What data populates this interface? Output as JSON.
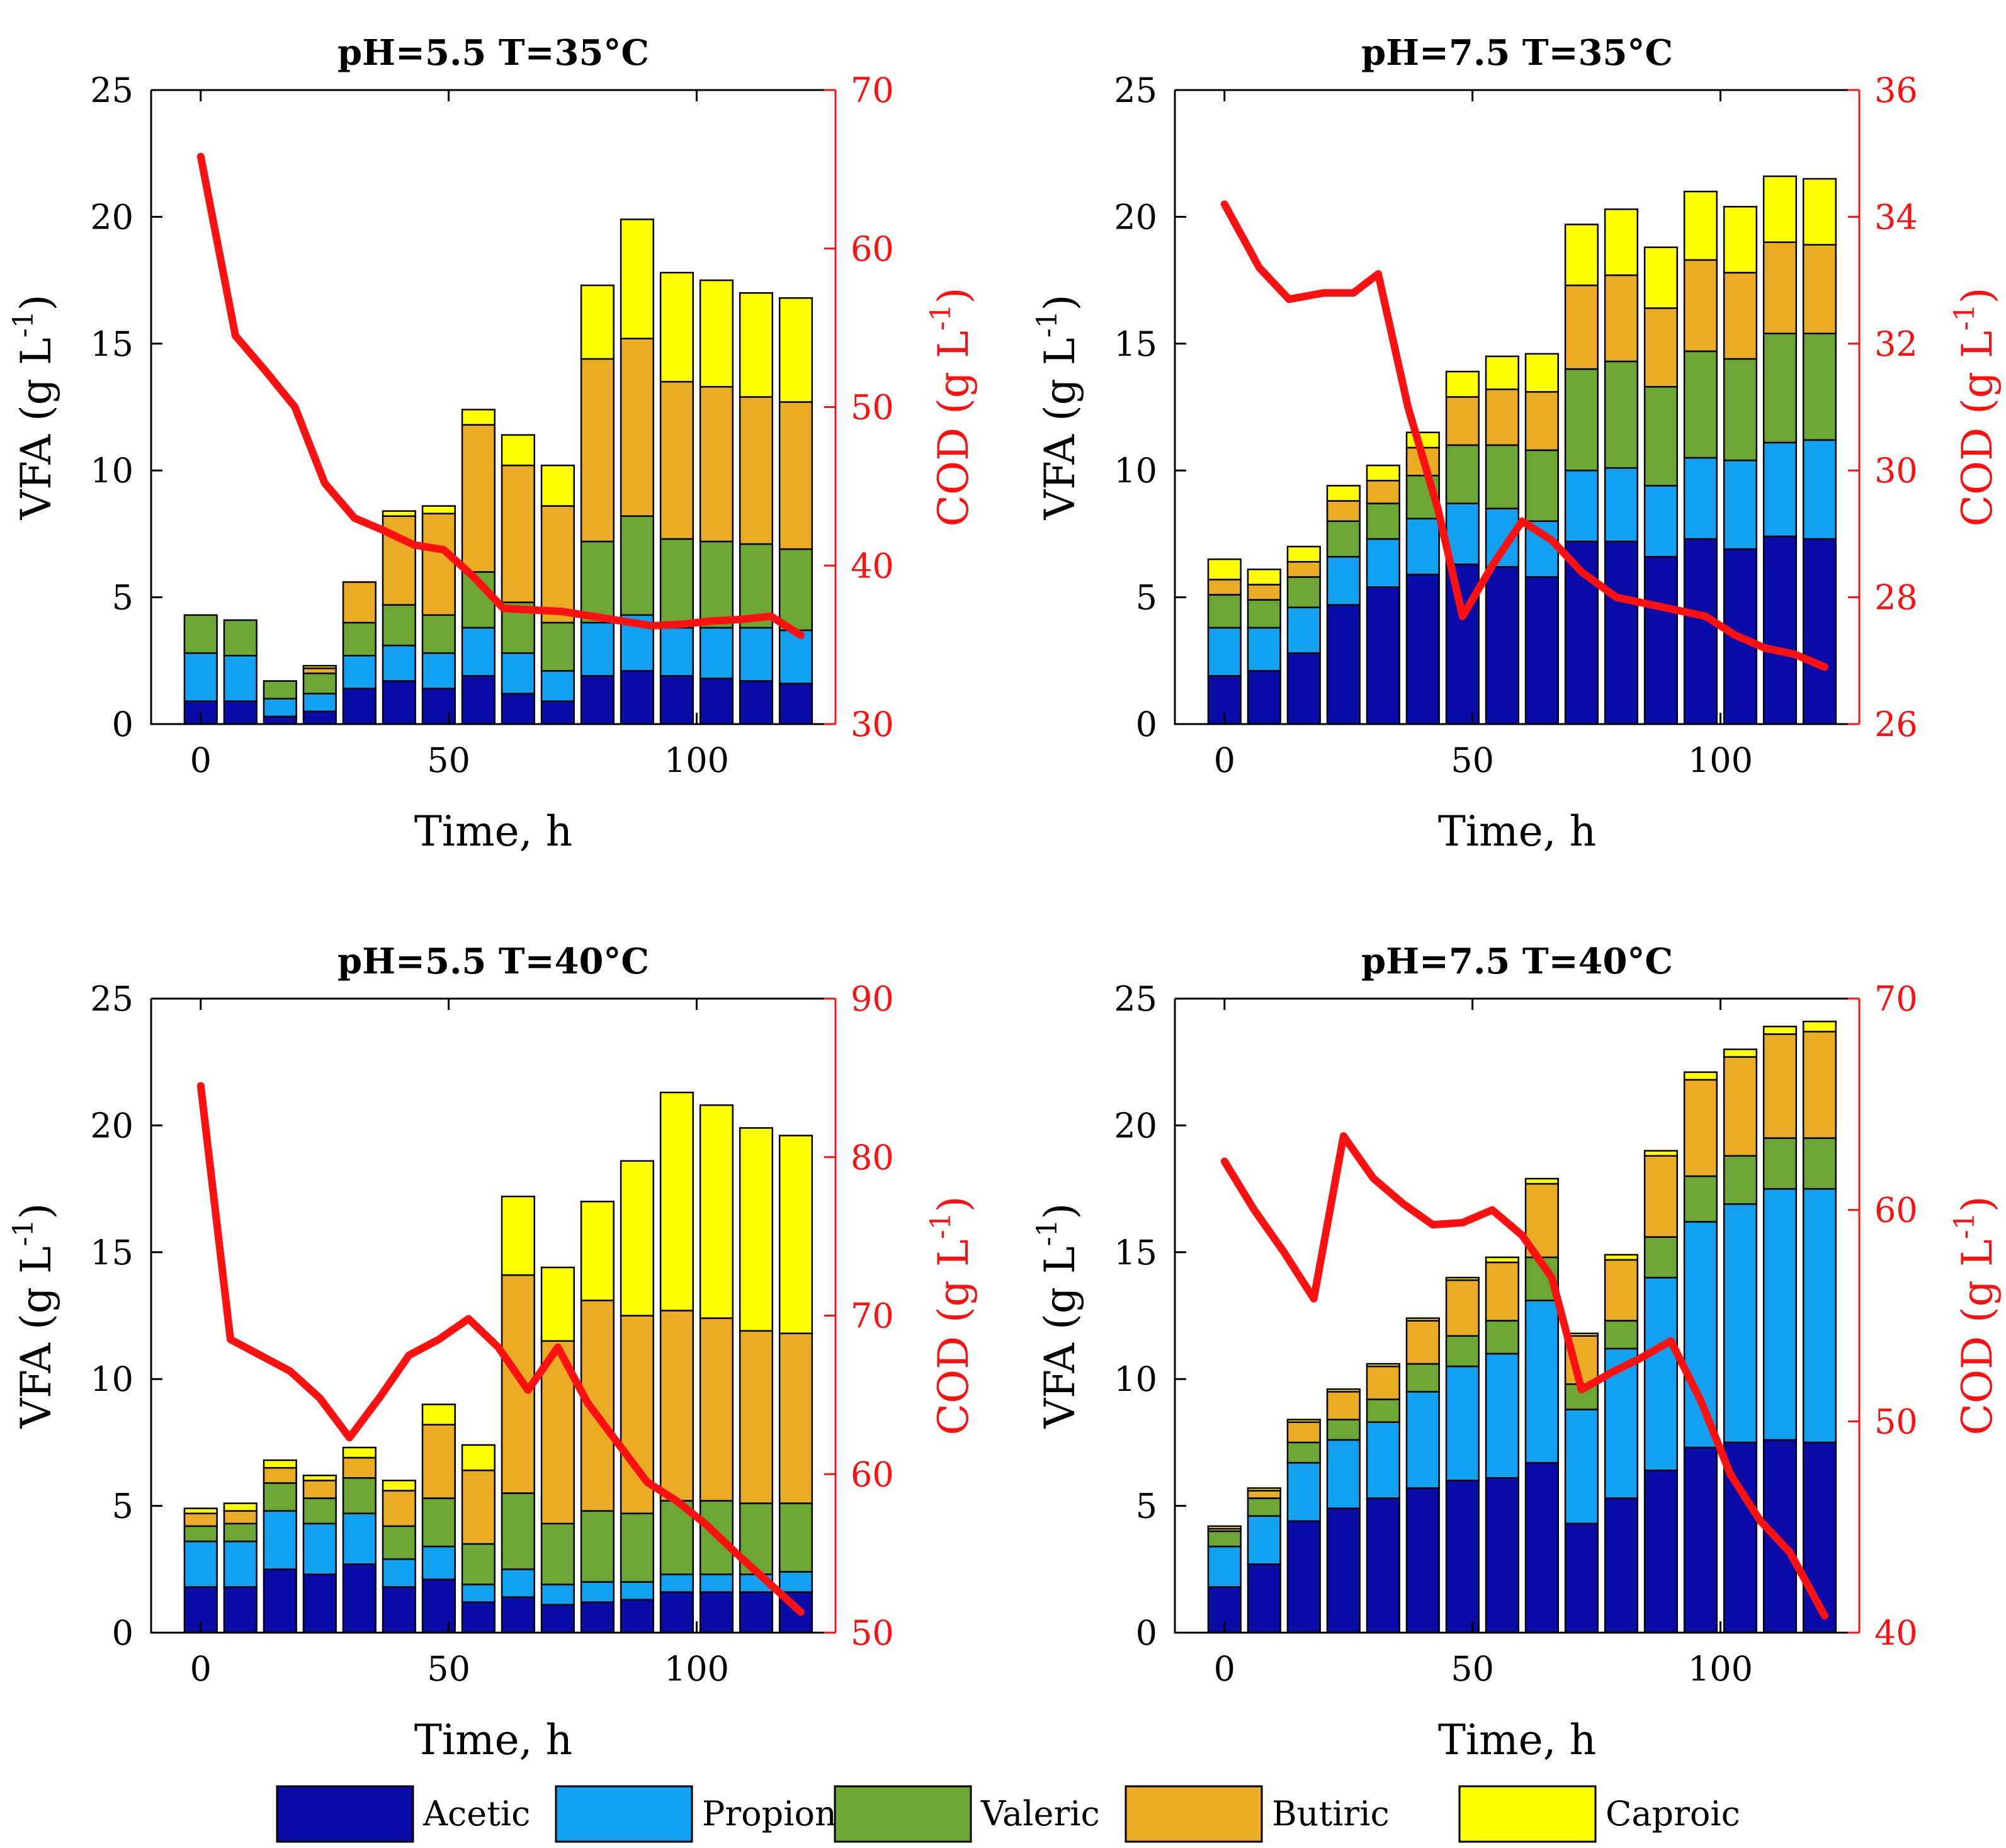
{
  "legend": {
    "entries": [
      {
        "name": "Acetic",
        "color": "#0a0ca8"
      },
      {
        "name": "Propionic",
        "color": "#12a1f0"
      },
      {
        "name": "Valeric",
        "color": "#6ca635"
      },
      {
        "name": "Butiric",
        "color": "#eaac24"
      },
      {
        "name": "Caproic",
        "color": "#ffff00"
      }
    ]
  },
  "line_color": "#ff1010",
  "chart_data": [
    {
      "type": "bar",
      "stacked": true,
      "title": "pH=5.5 T=35°C",
      "xlabel": "Time, h",
      "ylabel_main": "VFA (g L",
      "ylabel_right_main": "COD (g L",
      "ylabel_sup": "-1",
      "ylabel_close": ")",
      "xlim": [
        -10,
        128
      ],
      "ylim": [
        0,
        25
      ],
      "y2lim": [
        30,
        70
      ],
      "xticks": [
        0,
        50,
        100
      ],
      "yticks": [
        0,
        5,
        10,
        15,
        20,
        25
      ],
      "y2ticks": [
        30,
        40,
        50,
        60,
        70
      ],
      "x": [
        0,
        8,
        16,
        24,
        32,
        40,
        48,
        56,
        64,
        72,
        80,
        88,
        96,
        104,
        112,
        120
      ],
      "series": [
        {
          "name": "Acetic",
          "values": [
            0.9,
            0.9,
            0.3,
            0.5,
            1.4,
            1.7,
            1.4,
            1.9,
            1.2,
            0.9,
            1.9,
            2.1,
            1.9,
            1.8,
            1.7,
            1.6
          ]
        },
        {
          "name": "Propionic",
          "values": [
            1.9,
            1.8,
            0.7,
            0.7,
            1.3,
            1.4,
            1.4,
            1.9,
            1.6,
            1.2,
            2.1,
            2.2,
            1.9,
            2.0,
            2.1,
            2.1
          ]
        },
        {
          "name": "Valeric",
          "values": [
            1.5,
            1.4,
            0.7,
            0.8,
            1.3,
            1.6,
            1.5,
            2.2,
            2.0,
            1.9,
            3.2,
            3.9,
            3.5,
            3.4,
            3.3,
            3.2
          ]
        },
        {
          "name": "Butiric",
          "values": [
            0,
            0,
            0,
            0.2,
            1.6,
            3.5,
            4.0,
            5.8,
            5.4,
            4.6,
            7.2,
            7.0,
            6.2,
            6.1,
            5.8,
            5.8
          ]
        },
        {
          "name": "Caproic",
          "values": [
            0,
            0,
            0,
            0.1,
            0,
            0.2,
            0.3,
            0.6,
            1.2,
            1.6,
            2.9,
            4.7,
            4.3,
            4.2,
            4.1,
            4.1
          ]
        }
      ],
      "cod": {
        "x": [
          0,
          7,
          13,
          19,
          25,
          31,
          37,
          43,
          49,
          55,
          61,
          67,
          73,
          79,
          85,
          91,
          97,
          103,
          109,
          115,
          121
        ],
        "y": [
          65.8,
          54.5,
          52.3,
          50.0,
          45.2,
          43.0,
          42.2,
          41.3,
          41.0,
          39.3,
          37.3,
          37.2,
          37.1,
          36.8,
          36.5,
          36.2,
          36.3,
          36.5,
          36.6,
          36.8,
          35.6
        ]
      }
    },
    {
      "type": "bar",
      "stacked": true,
      "title": "pH=7.5 T=35°C",
      "xlabel": "Time, h",
      "ylabel_main": "VFA (g L",
      "ylabel_right_main": "COD (g L",
      "ylabel_sup": "-1",
      "ylabel_close": ")",
      "xlim": [
        -10,
        128
      ],
      "ylim": [
        0,
        25
      ],
      "y2lim": [
        26,
        36
      ],
      "xticks": [
        0,
        50,
        100
      ],
      "yticks": [
        0,
        5,
        10,
        15,
        20,
        25
      ],
      "y2ticks": [
        26,
        28,
        30,
        32,
        34,
        36
      ],
      "x": [
        0,
        8,
        16,
        24,
        32,
        40,
        48,
        56,
        64,
        72,
        80,
        88,
        96,
        104,
        112,
        120
      ],
      "series": [
        {
          "name": "Acetic",
          "values": [
            1.9,
            2.1,
            2.8,
            4.7,
            5.4,
            5.9,
            6.3,
            6.2,
            5.8,
            7.2,
            7.2,
            6.6,
            7.3,
            6.9,
            7.4,
            7.3
          ]
        },
        {
          "name": "Propionic",
          "values": [
            1.9,
            1.7,
            1.8,
            1.9,
            1.9,
            2.2,
            2.4,
            2.3,
            2.2,
            2.8,
            2.9,
            2.8,
            3.2,
            3.5,
            3.7,
            3.9
          ]
        },
        {
          "name": "Valeric",
          "values": [
            1.3,
            1.1,
            1.2,
            1.4,
            1.4,
            1.7,
            2.3,
            2.5,
            2.8,
            4.0,
            4.2,
            3.9,
            4.2,
            4.0,
            4.3,
            4.2
          ]
        },
        {
          "name": "Butiric",
          "values": [
            0.6,
            0.6,
            0.6,
            0.8,
            0.9,
            1.1,
            1.9,
            2.2,
            2.3,
            3.3,
            3.4,
            3.1,
            3.6,
            3.4,
            3.6,
            3.5
          ]
        },
        {
          "name": "Caproic",
          "values": [
            0.8,
            0.6,
            0.6,
            0.6,
            0.6,
            0.6,
            1.0,
            1.3,
            1.5,
            2.4,
            2.6,
            2.4,
            2.7,
            2.6,
            2.6,
            2.6
          ]
        }
      ],
      "cod": {
        "x": [
          0,
          7,
          13,
          20,
          26,
          31,
          37,
          43,
          48,
          54,
          60,
          66,
          72,
          79,
          85,
          91,
          97,
          103,
          109,
          115,
          121
        ],
        "y": [
          34.2,
          33.2,
          32.7,
          32.8,
          32.8,
          33.1,
          31.0,
          29.4,
          27.7,
          28.5,
          29.2,
          28.9,
          28.4,
          28.0,
          27.9,
          27.8,
          27.7,
          27.4,
          27.2,
          27.1,
          26.9
        ]
      }
    },
    {
      "type": "bar",
      "stacked": true,
      "title": "pH=5.5 T=40°C",
      "xlabel": "Time, h",
      "ylabel_main": "VFA (g L",
      "ylabel_right_main": "COD (g L",
      "ylabel_sup": "-1",
      "ylabel_close": ")",
      "xlim": [
        -10,
        128
      ],
      "ylim": [
        0,
        25
      ],
      "y2lim": [
        50,
        90
      ],
      "xticks": [
        0,
        50,
        100
      ],
      "yticks": [
        0,
        5,
        10,
        15,
        20,
        25
      ],
      "y2ticks": [
        50,
        60,
        70,
        80,
        90
      ],
      "x": [
        0,
        8,
        16,
        24,
        32,
        40,
        48,
        56,
        64,
        72,
        80,
        88,
        96,
        104,
        112,
        120
      ],
      "series": [
        {
          "name": "Acetic",
          "values": [
            1.8,
            1.8,
            2.5,
            2.3,
            2.7,
            1.8,
            2.1,
            1.2,
            1.4,
            1.1,
            1.2,
            1.3,
            1.6,
            1.6,
            1.6,
            1.6
          ]
        },
        {
          "name": "Propionic",
          "values": [
            1.8,
            1.8,
            2.3,
            2.0,
            2.0,
            1.1,
            1.3,
            0.7,
            1.1,
            0.8,
            0.8,
            0.7,
            0.7,
            0.7,
            0.7,
            0.8
          ]
        },
        {
          "name": "Valeric",
          "values": [
            0.6,
            0.7,
            1.1,
            1.0,
            1.4,
            1.3,
            1.9,
            1.6,
            3.0,
            2.4,
            2.8,
            2.7,
            2.9,
            2.9,
            2.8,
            2.7
          ]
        },
        {
          "name": "Butiric",
          "values": [
            0.5,
            0.5,
            0.6,
            0.7,
            0.8,
            1.4,
            2.9,
            2.9,
            8.6,
            7.2,
            8.3,
            7.8,
            7.5,
            7.2,
            6.8,
            6.7
          ]
        },
        {
          "name": "Caproic",
          "values": [
            0.2,
            0.3,
            0.3,
            0.2,
            0.4,
            0.4,
            0.8,
            1.0,
            3.1,
            2.9,
            3.9,
            6.1,
            8.6,
            8.4,
            8.0,
            7.8
          ]
        }
      ],
      "cod": {
        "x": [
          0,
          6,
          12,
          18,
          24,
          30,
          36,
          42,
          48,
          54,
          60,
          66,
          72,
          78,
          84,
          90,
          96,
          102,
          108,
          114,
          121
        ],
        "y": [
          84.5,
          68.5,
          67.5,
          66.5,
          64.8,
          62.3,
          64.8,
          67.5,
          68.5,
          69.8,
          68.0,
          65.3,
          68.0,
          64.5,
          62.0,
          59.5,
          58.3,
          56.8,
          55.0,
          53.3,
          51.3
        ]
      }
    },
    {
      "type": "bar",
      "stacked": true,
      "title": "pH=7.5 T=40°C",
      "xlabel": "Time, h",
      "ylabel_main": "VFA (g L",
      "ylabel_right_main": "COD (g L",
      "ylabel_sup": "-1",
      "ylabel_close": ")",
      "xlim": [
        -10,
        128
      ],
      "ylim": [
        0,
        25
      ],
      "y2lim": [
        40,
        70
      ],
      "xticks": [
        0,
        50,
        100
      ],
      "yticks": [
        0,
        5,
        10,
        15,
        20,
        25
      ],
      "y2ticks": [
        40,
        50,
        60,
        70
      ],
      "x": [
        0,
        8,
        16,
        24,
        32,
        40,
        48,
        56,
        64,
        72,
        80,
        88,
        96,
        104,
        112,
        120
      ],
      "series": [
        {
          "name": "Acetic",
          "values": [
            1.8,
            2.7,
            4.4,
            4.9,
            5.3,
            5.7,
            6.0,
            6.1,
            6.7,
            4.3,
            5.3,
            6.4,
            7.3,
            7.5,
            7.6,
            7.5
          ]
        },
        {
          "name": "Propionic",
          "values": [
            1.6,
            1.9,
            2.3,
            2.7,
            3.0,
            3.8,
            4.5,
            4.9,
            6.4,
            4.5,
            5.9,
            7.6,
            8.9,
            9.4,
            9.9,
            10.0
          ]
        },
        {
          "name": "Valeric",
          "values": [
            0.6,
            0.7,
            0.8,
            0.8,
            0.9,
            1.1,
            1.2,
            1.3,
            1.7,
            1.0,
            1.1,
            1.6,
            1.8,
            1.9,
            2.0,
            2.0
          ]
        },
        {
          "name": "Butiric",
          "values": [
            0.1,
            0.3,
            0.8,
            1.1,
            1.3,
            1.7,
            2.2,
            2.3,
            2.9,
            1.9,
            2.4,
            3.2,
            3.8,
            3.9,
            4.1,
            4.2
          ]
        },
        {
          "name": "Caproic",
          "values": [
            0.1,
            0.1,
            0.1,
            0.1,
            0.1,
            0.1,
            0.1,
            0.2,
            0.2,
            0.1,
            0.2,
            0.2,
            0.3,
            0.3,
            0.3,
            0.4
          ]
        }
      ],
      "cod": {
        "x": [
          0,
          6,
          12,
          18,
          24,
          30,
          36,
          42,
          48,
          54,
          60,
          66,
          72,
          78,
          84,
          90,
          96,
          102,
          108,
          114,
          121
        ],
        "y": [
          62.3,
          60.0,
          58.0,
          55.8,
          63.5,
          61.5,
          60.3,
          59.3,
          59.4,
          60.0,
          58.8,
          56.8,
          51.5,
          52.3,
          53.0,
          53.8,
          51.0,
          47.5,
          45.3,
          43.8,
          40.8
        ]
      }
    }
  ]
}
